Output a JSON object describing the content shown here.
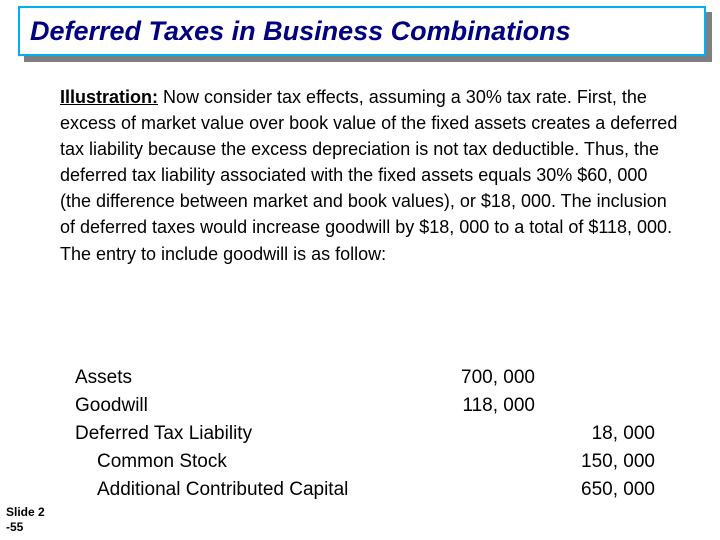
{
  "title": {
    "text": "Deferred Taxes in Business Combinations",
    "bg_color": "#ffffff",
    "border_color": "#00b0f0",
    "text_color": "#000080",
    "fontsize": 27
  },
  "illustration": {
    "label": "Illustration:",
    "body": " Now consider tax effects, assuming a 30% tax rate. First, the excess of market value over book value of the fixed assets creates a deferred tax liability because the excess depreciation is not tax deductible. Thus, the deferred tax liability associated with the fixed assets equals 30%  $60, 000 (the difference between market and book values), or $18, 000. The inclusion of deferred taxes would increase goodwill by $18, 000 to a total of $118, 000. The entry to include goodwill is as follow:",
    "fontsize": 18
  },
  "entries": {
    "fontsize": 19,
    "rows": [
      {
        "label": "Assets",
        "debit": "700, 000",
        "credit": "",
        "indent": false
      },
      {
        "label": "Goodwill",
        "debit": "118, 000",
        "credit": "",
        "indent": false
      },
      {
        "label": "Deferred Tax Liability",
        "debit": "",
        "credit": "18, 000",
        "indent": false
      },
      {
        "label": "Common Stock",
        "debit": "",
        "credit": "150, 000",
        "indent": true
      },
      {
        "label": "Additional Contributed Capital",
        "debit": "",
        "credit": "650, 000",
        "indent": true
      }
    ]
  },
  "footer": {
    "line1": "Slide 2",
    "line2": "-55"
  },
  "colors": {
    "body_text": "#000000"
  }
}
